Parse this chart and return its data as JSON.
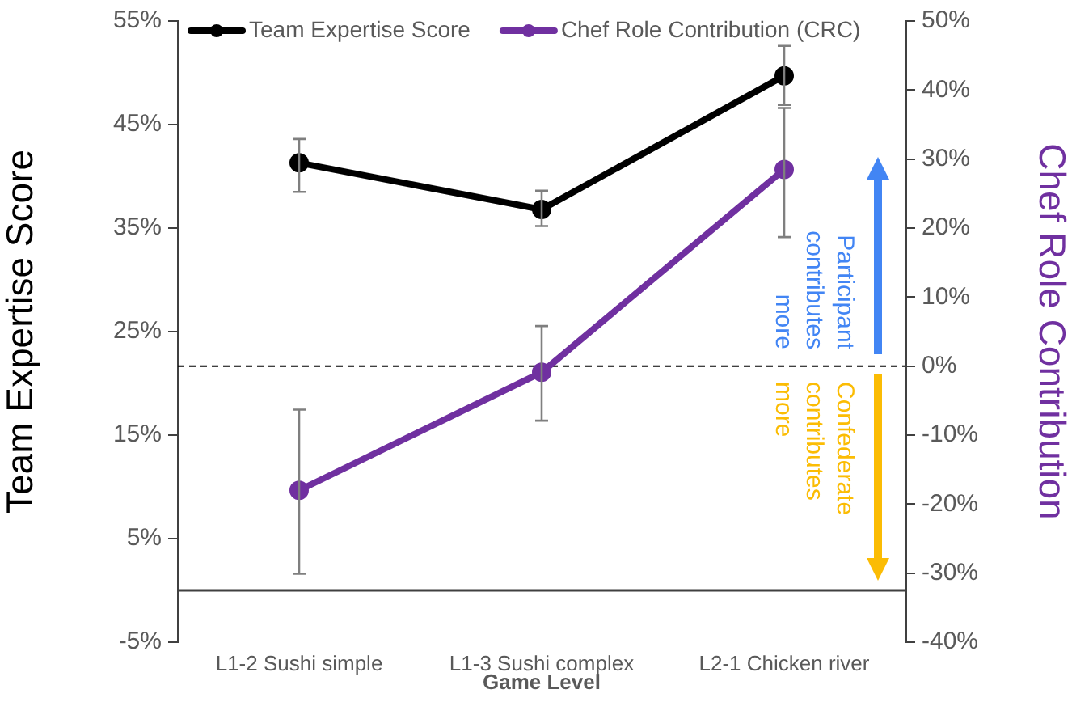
{
  "chart_data": {
    "type": "line",
    "xlabel": "Game Level",
    "ylabel": "Team Expertise Score",
    "y2label": "Chef Role Contribution",
    "categories": [
      "L1-2 Sushi simple",
      "L1-3 Sushi complex",
      "L2-1 Chicken river"
    ],
    "series": [
      {
        "name": "Team Expertise Score",
        "color": "#000000",
        "values": [
          41.3,
          36.8,
          49.7
        ],
        "errors": [
          [
            38.5,
            43.6
          ],
          [
            35.2,
            38.6
          ],
          [
            46.9,
            52.6
          ]
        ]
      },
      {
        "name": "Chef Role Contribution (CRC)",
        "color": "#7030a0",
        "axis": "y2",
        "values": [
          -18,
          -0.9,
          28.5
        ],
        "errors": [
          [
            -30.1,
            -6.3
          ],
          [
            -7.9,
            5.8
          ],
          [
            18.7,
            37.4
          ]
        ]
      }
    ],
    "ylim": [
      -5,
      55
    ],
    "yticks": [
      {
        "value": -5,
        "label": "-5%"
      },
      {
        "value": 5,
        "label": "5%"
      },
      {
        "value": 15,
        "label": "15%"
      },
      {
        "value": 25,
        "label": "25%"
      },
      {
        "value": 35,
        "label": "35%"
      },
      {
        "value": 45,
        "label": "45%"
      },
      {
        "value": 55,
        "label": "55%"
      }
    ],
    "y2lim": [
      -40,
      50
    ],
    "y2ticks": [
      {
        "value": -40,
        "label": "-40%"
      },
      {
        "value": -30,
        "label": "-30%"
      },
      {
        "value": -20,
        "label": "-20%"
      },
      {
        "value": -10,
        "label": "-10%"
      },
      {
        "value": 0,
        "label": "0%"
      },
      {
        "value": 10,
        "label": "10%"
      },
      {
        "value": 20,
        "label": "20%"
      },
      {
        "value": 30,
        "label": "30%"
      },
      {
        "value": 40,
        "label": "40%"
      },
      {
        "value": 50,
        "label": "50%"
      }
    ],
    "ref_lines": [
      {
        "axis": "y",
        "value": 0,
        "color": "#404040",
        "line_style": "solid"
      },
      {
        "axis": "y2",
        "value": 0,
        "color": "#000000",
        "line_style": "dashed"
      }
    ],
    "annotations": [
      "Participant contributes more",
      "Confederate contributes more"
    ],
    "legend": "top",
    "marker": "circle",
    "line_style": "solid",
    "grid": false
  }
}
